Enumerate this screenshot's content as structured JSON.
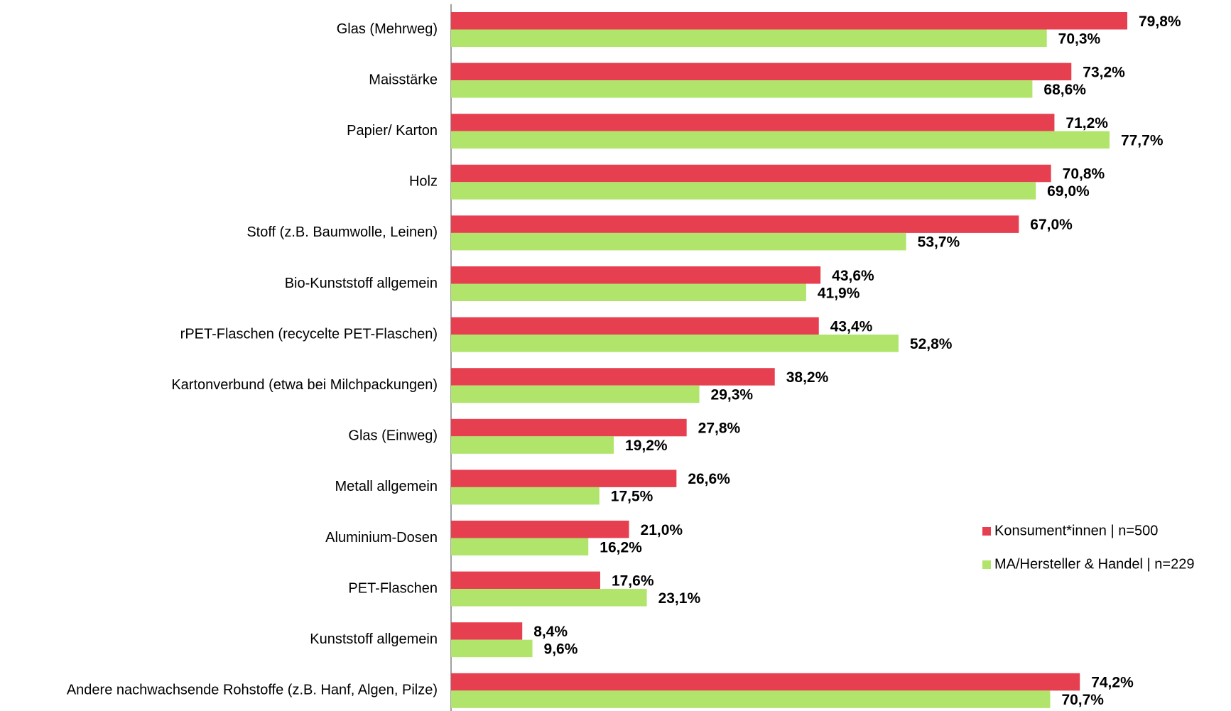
{
  "chart_data": {
    "type": "hbar",
    "categories": [
      "Glas (Mehrweg)",
      "Maisstärke",
      "Papier/ Karton",
      "Holz",
      "Stoff (z.B. Baumwolle, Leinen)",
      "Bio-Kunststoff allgemein",
      "rPET-Flaschen (recycelte PET-Flaschen)",
      "Kartonverbund (etwa bei Milchpackungen)",
      "Glas (Einweg)",
      "Metall allgemein",
      "Aluminium-Dosen",
      "PET-Flaschen",
      "Kunststoff allgemein",
      "Andere nachwachsende Rohstoffe (z.B. Hanf, Algen, Pilze)"
    ],
    "series": [
      {
        "name": "Konsument*innen | n=500",
        "color": "#e63f50",
        "values": [
          79.8,
          73.2,
          71.2,
          70.8,
          67.0,
          43.6,
          43.4,
          38.2,
          27.8,
          26.6,
          21.0,
          17.6,
          8.4,
          74.2
        ],
        "value_labels": [
          "79,8%",
          "73,2%",
          "71,2%",
          "70,8%",
          "67,0%",
          "43,6%",
          "43,4%",
          "38,2%",
          "27,8%",
          "26,6%",
          "21,0%",
          "17,6%",
          "8,4%",
          "74,2%"
        ]
      },
      {
        "name": "MA/Hersteller & Handel | n=229",
        "color": "#b0e46a",
        "values": [
          70.3,
          68.6,
          77.7,
          69.0,
          53.7,
          41.9,
          52.8,
          29.3,
          19.2,
          17.5,
          16.2,
          23.1,
          9.6,
          70.7
        ],
        "value_labels": [
          "70,3%",
          "68,6%",
          "77,7%",
          "69,0%",
          "53,7%",
          "41,9%",
          "52,8%",
          "29,3%",
          "19,2%",
          "17,5%",
          "16,2%",
          "23,1%",
          "9,6%",
          "70,7%"
        ]
      }
    ],
    "xlim": [
      0,
      100
    ],
    "legend": "right"
  }
}
